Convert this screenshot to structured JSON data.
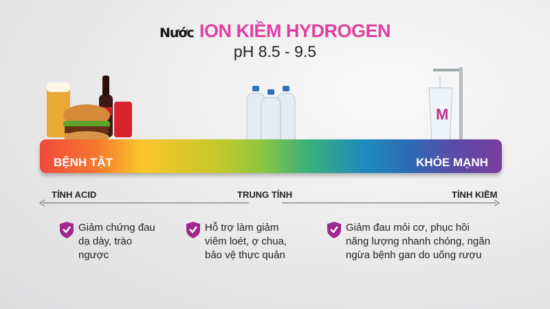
{
  "header": {
    "title_prefix": "Nước",
    "title_main": "ION KIỀM  HYDROGEN",
    "subtitle": "pH 8.5 - 9.5"
  },
  "scale": {
    "left_label": "BỆNH TẬT",
    "right_label": "KHỎE MẠNH"
  },
  "axis": {
    "left": "TÍNH ACID",
    "center": "TRUNG TÍNH",
    "right": "TÍNH KIỀM"
  },
  "benefits": [
    {
      "icon": "shield-check-icon",
      "text": "Giảm chứng đau\ndạ dày, trào\nngược"
    },
    {
      "icon": "shield-check-icon",
      "text": "Hỗ trợ làm giảm\nviêm loét, ợ chua,\nbảo vệ thực quản"
    },
    {
      "icon": "shield-check-icon",
      "text": "Giảm đau mỏi cơ, phục hồi\nnăng lượng nhanh chóng, ngăn\nngừa bệnh gan do uống rượu"
    }
  ],
  "colors": {
    "accent": "#e040a0",
    "shield": "#a0288c"
  }
}
